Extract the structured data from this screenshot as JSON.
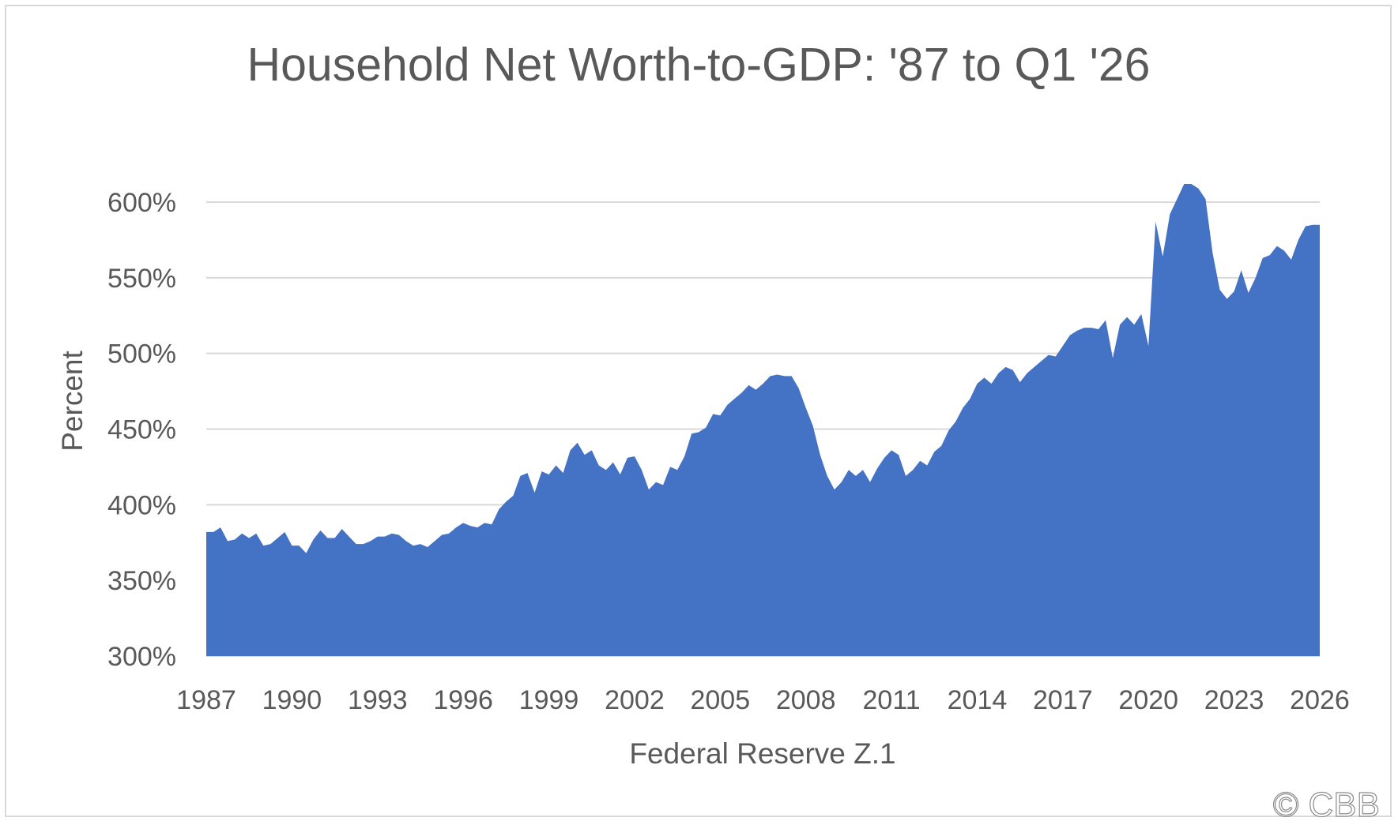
{
  "chart_data": {
    "type": "area",
    "title": "Household Net Worth-to-GDP: '87 to Q1 '26",
    "xlabel": "Federal Reserve Z.1",
    "ylabel": "Percent",
    "x_start": 1987.0,
    "x_step": 0.25,
    "ylim": [
      300,
      600
    ],
    "yticks": [
      300,
      350,
      400,
      450,
      500,
      550,
      600
    ],
    "ytick_labels": [
      "300%",
      "350%",
      "400%",
      "450%",
      "500%",
      "550%",
      "600%"
    ],
    "xlim": [
      1987,
      2026
    ],
    "xticks": [
      1987,
      1990,
      1993,
      1996,
      1999,
      2002,
      2005,
      2008,
      2011,
      2014,
      2017,
      2020,
      2023,
      2026
    ],
    "xtick_labels": [
      "1987",
      "1990",
      "1993",
      "1996",
      "1999",
      "2002",
      "2005",
      "2008",
      "2011",
      "2014",
      "2017",
      "2020",
      "2023",
      "2026"
    ],
    "grid": "horizontal",
    "legend": "none",
    "fill_color": "#4472c4",
    "series": [
      {
        "values": [
          382,
          382,
          385,
          376,
          377,
          381,
          378,
          381,
          373,
          374,
          378,
          382,
          373,
          373,
          368,
          377,
          383,
          378,
          378,
          384,
          379,
          374,
          374,
          376,
          379,
          379,
          381,
          380,
          376,
          373,
          374,
          372,
          376,
          380,
          381,
          385,
          388,
          386,
          385,
          388,
          387,
          397,
          402,
          406,
          419,
          421,
          408,
          422,
          420,
          426,
          421,
          436,
          441,
          433,
          436,
          426,
          423,
          428,
          420,
          431,
          432,
          423,
          410,
          415,
          413,
          425,
          423,
          432,
          447,
          448,
          451,
          460,
          459,
          466,
          470,
          474,
          479,
          476,
          480,
          485,
          486,
          485,
          485,
          477,
          464,
          452,
          433,
          419,
          410,
          415,
          423,
          419,
          423,
          415,
          424,
          431,
          436,
          433,
          419,
          423,
          429,
          426,
          435,
          439,
          449,
          455,
          464,
          470,
          480,
          484,
          480,
          487,
          491,
          489,
          481,
          487,
          491,
          495,
          499,
          498,
          505,
          512,
          515,
          517,
          517,
          516,
          522,
          497,
          519,
          524,
          519,
          526,
          505,
          587,
          564,
          592,
          602,
          612,
          612,
          609,
          602,
          566,
          542,
          536,
          541,
          555,
          540,
          550,
          563,
          565,
          571,
          568,
          562,
          575,
          584,
          585,
          585
        ]
      }
    ]
  },
  "copyright": "© CBB"
}
